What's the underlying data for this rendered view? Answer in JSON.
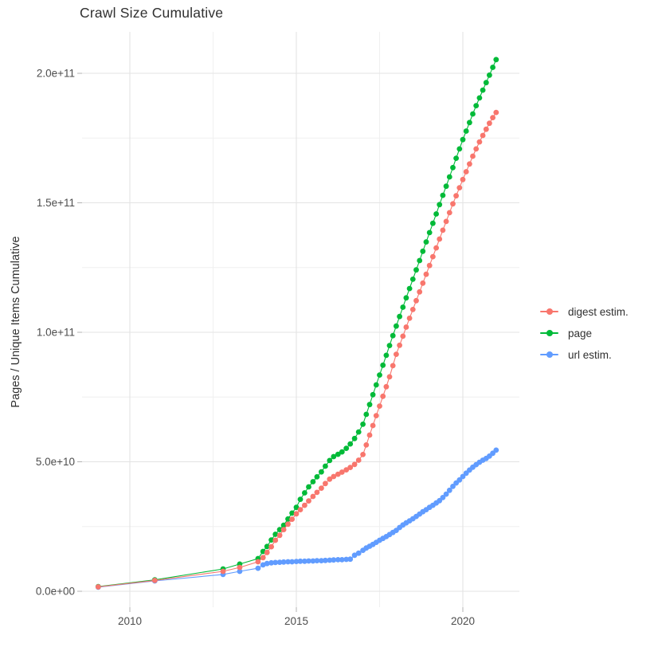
{
  "title": "Crawl Size Cumulative",
  "chart_data": {
    "type": "scatter",
    "title": "Crawl Size Cumulative",
    "xlabel": "",
    "ylabel": "Pages / Unique Items Cumulative",
    "legend_position": "right",
    "grid": true,
    "values_unit": "1e9 (value 50 = 5.0e+10)",
    "x_range": [
      2008.55,
      2021.65
    ],
    "y_range_e9": [
      -5,
      216
    ],
    "x_ticks": [
      {
        "value": 2010,
        "label": "2010"
      },
      {
        "value": 2015,
        "label": "2015"
      },
      {
        "value": 2020,
        "label": "2020"
      }
    ],
    "x_minor_ticks": [
      2012.5,
      2017.5
    ],
    "y_ticks": [
      {
        "value": 0,
        "label": "0.0e+00"
      },
      {
        "value": 50,
        "label": "5.0e+10"
      },
      {
        "value": 100,
        "label": "1.0e+11"
      },
      {
        "value": 150,
        "label": "1.5e+11"
      },
      {
        "value": 200,
        "label": "2.0e+11"
      }
    ],
    "y_minor_ticks": [
      25,
      75,
      125,
      175
    ],
    "draw_order": [
      "page",
      "url estim.",
      "digest estim."
    ],
    "series": [
      {
        "name": "digest estim.",
        "color": "#F8766D",
        "points": [
          [
            2009.05,
            1.7
          ],
          [
            2010.75,
            4.2
          ],
          [
            2012.8,
            7.7
          ],
          [
            2013.3,
            9.2
          ],
          [
            2013.85,
            11.4
          ],
          [
            2014.0,
            13.0
          ],
          [
            2014.12,
            15.0
          ],
          [
            2014.25,
            17.2
          ],
          [
            2014.37,
            19.7
          ],
          [
            2014.5,
            21.6
          ],
          [
            2014.62,
            23.8
          ],
          [
            2014.75,
            25.9
          ],
          [
            2014.87,
            27.8
          ],
          [
            2015.0,
            29.9
          ],
          [
            2015.12,
            31.5
          ],
          [
            2015.25,
            33.2
          ],
          [
            2015.37,
            34.9
          ],
          [
            2015.5,
            36.6
          ],
          [
            2015.62,
            38.2
          ],
          [
            2015.75,
            39.8
          ],
          [
            2015.87,
            41.6
          ],
          [
            2016.0,
            43.3
          ],
          [
            2016.12,
            44.3
          ],
          [
            2016.25,
            45.2
          ],
          [
            2016.37,
            46.0
          ],
          [
            2016.5,
            46.9
          ],
          [
            2016.62,
            47.8
          ],
          [
            2016.75,
            49.0
          ],
          [
            2016.87,
            50.6
          ],
          [
            2017.0,
            52.8
          ],
          [
            2017.1,
            56.5
          ],
          [
            2017.2,
            60.3
          ],
          [
            2017.3,
            64.0
          ],
          [
            2017.4,
            67.8
          ],
          [
            2017.5,
            71.5
          ],
          [
            2017.6,
            75.3
          ],
          [
            2017.7,
            79.0
          ],
          [
            2017.8,
            82.8
          ],
          [
            2017.9,
            87.1
          ],
          [
            2018.0,
            91.5
          ],
          [
            2018.1,
            95.0
          ],
          [
            2018.2,
            98.5
          ],
          [
            2018.3,
            102.0
          ],
          [
            2018.4,
            105.4
          ],
          [
            2018.5,
            108.8
          ],
          [
            2018.6,
            112.2
          ],
          [
            2018.7,
            115.6
          ],
          [
            2018.8,
            119.0
          ],
          [
            2018.9,
            122.4
          ],
          [
            2019.0,
            125.8
          ],
          [
            2019.1,
            129.2
          ],
          [
            2019.2,
            132.6
          ],
          [
            2019.3,
            136.0
          ],
          [
            2019.4,
            139.4
          ],
          [
            2019.5,
            142.8
          ],
          [
            2019.6,
            146.2
          ],
          [
            2019.7,
            149.6
          ],
          [
            2019.8,
            152.7
          ],
          [
            2019.9,
            155.8
          ],
          [
            2020.0,
            159.0
          ],
          [
            2020.1,
            162.0
          ],
          [
            2020.2,
            165.0
          ],
          [
            2020.3,
            168.0
          ],
          [
            2020.4,
            170.8
          ],
          [
            2020.5,
            173.5
          ],
          [
            2020.6,
            176.0
          ],
          [
            2020.7,
            178.4
          ],
          [
            2020.8,
            180.7
          ],
          [
            2020.9,
            182.9
          ],
          [
            2021.0,
            184.9
          ]
        ]
      },
      {
        "name": "page",
        "color": "#00BA38",
        "points": [
          [
            2009.05,
            1.8
          ],
          [
            2010.75,
            4.4
          ],
          [
            2012.8,
            8.6
          ],
          [
            2013.3,
            10.5
          ],
          [
            2013.85,
            12.6
          ],
          [
            2014.0,
            15.4
          ],
          [
            2014.12,
            17.3
          ],
          [
            2014.25,
            19.8
          ],
          [
            2014.37,
            22.0
          ],
          [
            2014.5,
            23.8
          ],
          [
            2014.62,
            25.5
          ],
          [
            2014.75,
            27.9
          ],
          [
            2014.87,
            30.2
          ],
          [
            2015.0,
            32.4
          ],
          [
            2015.12,
            35.5
          ],
          [
            2015.25,
            38.0
          ],
          [
            2015.37,
            40.3
          ],
          [
            2015.5,
            42.3
          ],
          [
            2015.62,
            44.2
          ],
          [
            2015.75,
            46.1
          ],
          [
            2015.87,
            48.3
          ],
          [
            2016.0,
            50.5
          ],
          [
            2016.12,
            52.0
          ],
          [
            2016.25,
            52.9
          ],
          [
            2016.37,
            53.8
          ],
          [
            2016.5,
            55.2
          ],
          [
            2016.62,
            56.9
          ],
          [
            2016.75,
            59.0
          ],
          [
            2016.87,
            61.5
          ],
          [
            2017.0,
            64.5
          ],
          [
            2017.1,
            68.3
          ],
          [
            2017.2,
            72.1
          ],
          [
            2017.3,
            75.9
          ],
          [
            2017.4,
            79.7
          ],
          [
            2017.5,
            83.5
          ],
          [
            2017.6,
            87.3
          ],
          [
            2017.7,
            91.1
          ],
          [
            2017.8,
            94.9
          ],
          [
            2017.9,
            98.7
          ],
          [
            2018.0,
            102.4
          ],
          [
            2018.1,
            106.1
          ],
          [
            2018.2,
            109.7
          ],
          [
            2018.3,
            113.3
          ],
          [
            2018.4,
            116.9
          ],
          [
            2018.5,
            120.5
          ],
          [
            2018.6,
            124.1
          ],
          [
            2018.7,
            127.7
          ],
          [
            2018.8,
            131.3
          ],
          [
            2018.9,
            134.9
          ],
          [
            2019.0,
            138.5
          ],
          [
            2019.1,
            142.1
          ],
          [
            2019.2,
            145.7
          ],
          [
            2019.3,
            149.3
          ],
          [
            2019.4,
            152.9
          ],
          [
            2019.5,
            156.4
          ],
          [
            2019.6,
            160.0
          ],
          [
            2019.7,
            163.6
          ],
          [
            2019.8,
            167.2
          ],
          [
            2019.9,
            170.8
          ],
          [
            2020.0,
            174.4
          ],
          [
            2020.1,
            177.7
          ],
          [
            2020.2,
            181.0
          ],
          [
            2020.3,
            184.3
          ],
          [
            2020.4,
            187.5
          ],
          [
            2020.5,
            190.5
          ],
          [
            2020.6,
            193.5
          ],
          [
            2020.7,
            196.4
          ],
          [
            2020.8,
            199.3
          ],
          [
            2020.9,
            202.3
          ],
          [
            2021.0,
            205.3
          ]
        ]
      },
      {
        "name": "url estim.",
        "color": "#619CFF",
        "points": [
          [
            2009.05,
            1.6
          ],
          [
            2010.75,
            4.0
          ],
          [
            2012.8,
            6.5
          ],
          [
            2013.3,
            7.7
          ],
          [
            2013.85,
            8.9
          ],
          [
            2014.0,
            10.2
          ],
          [
            2014.12,
            10.7
          ],
          [
            2014.25,
            11.0
          ],
          [
            2014.37,
            11.1
          ],
          [
            2014.5,
            11.2
          ],
          [
            2014.62,
            11.3
          ],
          [
            2014.75,
            11.4
          ],
          [
            2014.87,
            11.4
          ],
          [
            2015.0,
            11.5
          ],
          [
            2015.12,
            11.6
          ],
          [
            2015.25,
            11.6
          ],
          [
            2015.37,
            11.7
          ],
          [
            2015.5,
            11.7
          ],
          [
            2015.62,
            11.8
          ],
          [
            2015.75,
            11.8
          ],
          [
            2015.87,
            11.9
          ],
          [
            2016.0,
            12.0
          ],
          [
            2016.12,
            12.1
          ],
          [
            2016.25,
            12.2
          ],
          [
            2016.37,
            12.2
          ],
          [
            2016.5,
            12.3
          ],
          [
            2016.62,
            12.4
          ],
          [
            2016.75,
            13.9
          ],
          [
            2016.87,
            14.7
          ],
          [
            2017.0,
            15.8
          ],
          [
            2017.1,
            16.7
          ],
          [
            2017.2,
            17.4
          ],
          [
            2017.3,
            18.1
          ],
          [
            2017.4,
            18.9
          ],
          [
            2017.5,
            19.7
          ],
          [
            2017.6,
            20.4
          ],
          [
            2017.7,
            21.1
          ],
          [
            2017.8,
            21.9
          ],
          [
            2017.9,
            22.7
          ],
          [
            2018.0,
            23.5
          ],
          [
            2018.1,
            24.6
          ],
          [
            2018.2,
            25.6
          ],
          [
            2018.3,
            26.4
          ],
          [
            2018.4,
            27.2
          ],
          [
            2018.5,
            28.0
          ],
          [
            2018.6,
            28.9
          ],
          [
            2018.7,
            29.8
          ],
          [
            2018.8,
            30.7
          ],
          [
            2018.9,
            31.5
          ],
          [
            2019.0,
            32.4
          ],
          [
            2019.1,
            33.2
          ],
          [
            2019.2,
            34.1
          ],
          [
            2019.3,
            35.0
          ],
          [
            2019.4,
            36.2
          ],
          [
            2019.5,
            37.5
          ],
          [
            2019.6,
            39.0
          ],
          [
            2019.7,
            40.5
          ],
          [
            2019.8,
            41.8
          ],
          [
            2019.9,
            43.0
          ],
          [
            2020.0,
            44.3
          ],
          [
            2020.1,
            45.6
          ],
          [
            2020.2,
            46.8
          ],
          [
            2020.3,
            47.9
          ],
          [
            2020.4,
            48.9
          ],
          [
            2020.5,
            49.8
          ],
          [
            2020.6,
            50.6
          ],
          [
            2020.7,
            51.3
          ],
          [
            2020.8,
            52.2
          ],
          [
            2020.9,
            53.3
          ],
          [
            2021.0,
            54.5
          ]
        ]
      }
    ]
  }
}
